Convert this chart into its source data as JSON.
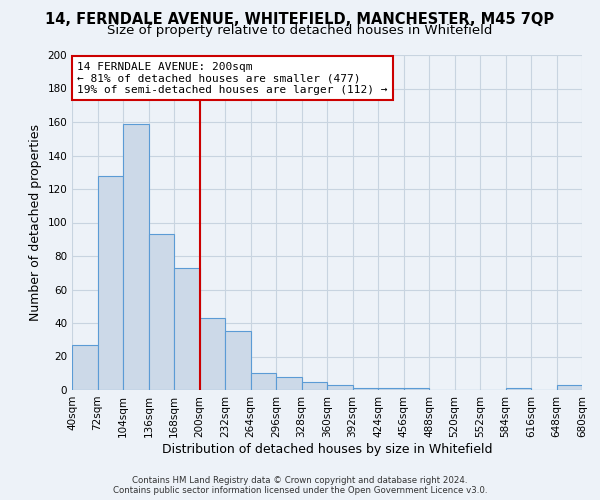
{
  "title": "14, FERNDALE AVENUE, WHITEFIELD, MANCHESTER, M45 7QP",
  "subtitle": "Size of property relative to detached houses in Whitefield",
  "xlabel": "Distribution of detached houses by size in Whitefield",
  "ylabel": "Number of detached properties",
  "footer_line1": "Contains HM Land Registry data © Crown copyright and database right 2024.",
  "footer_line2": "Contains public sector information licensed under the Open Government Licence v3.0.",
  "bar_color": "#ccd9e8",
  "bar_edge_color": "#5b9bd5",
  "vline_color": "#cc0000",
  "vline_x": 200,
  "annotation_title": "14 FERNDALE AVENUE: 200sqm",
  "annotation_line1": "← 81% of detached houses are smaller (477)",
  "annotation_line2": "19% of semi-detached houses are larger (112) →",
  "annotation_box_color": "#cc0000",
  "bin_edges": [
    40,
    72,
    104,
    136,
    168,
    200,
    232,
    264,
    296,
    328,
    360,
    392,
    424,
    456,
    488,
    520,
    552,
    584,
    616,
    648,
    680
  ],
  "bar_heights": [
    27,
    128,
    159,
    93,
    73,
    43,
    35,
    10,
    8,
    5,
    3,
    1,
    1,
    1,
    0,
    0,
    0,
    1,
    0,
    3
  ],
  "ylim": [
    0,
    200
  ],
  "xlim": [
    40,
    680
  ],
  "bg_color": "#edf2f8",
  "grid_color": "#c8d4e0",
  "title_fontsize": 10.5,
  "subtitle_fontsize": 9.5,
  "tick_fontsize": 7.5,
  "label_fontsize": 9,
  "yticks": [
    0,
    20,
    40,
    60,
    80,
    100,
    120,
    140,
    160,
    180,
    200
  ]
}
